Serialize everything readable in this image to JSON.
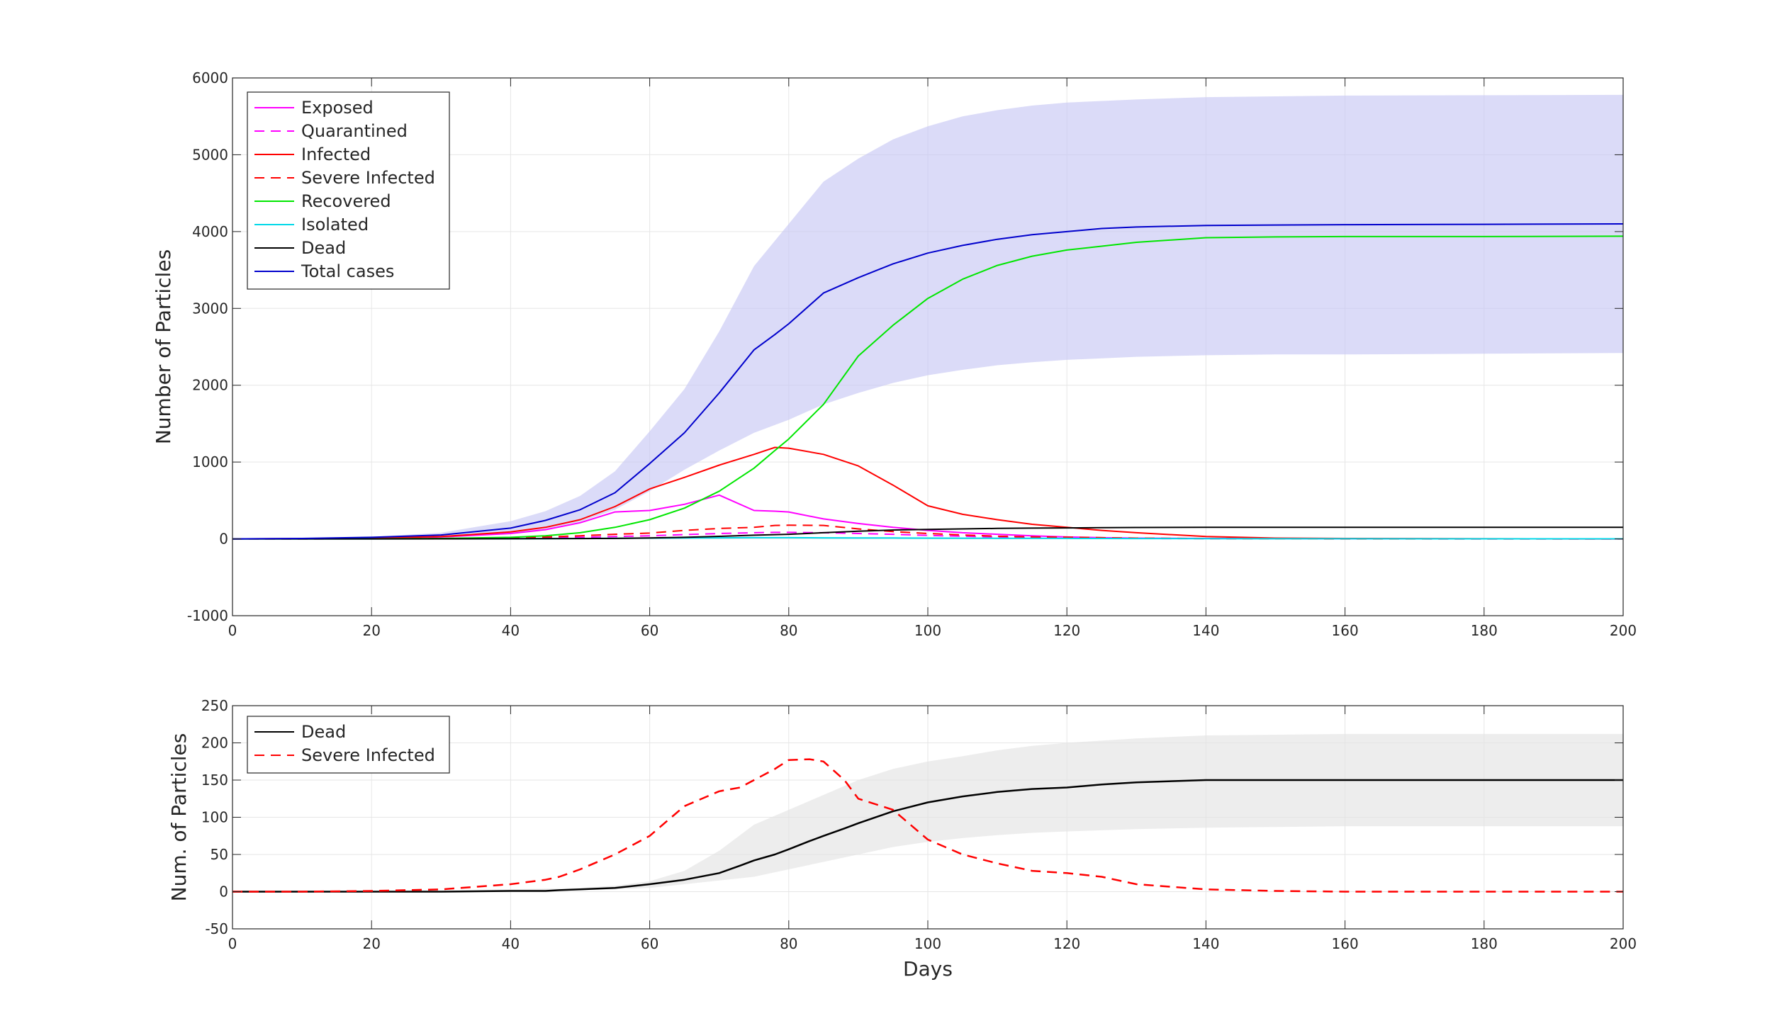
{
  "figure": {
    "xlabel": "Days"
  },
  "chart_data": [
    {
      "type": "line",
      "title": "",
      "xlabel": "",
      "ylabel": "Number of Particles",
      "xlim": [
        0,
        200
      ],
      "ylim": [
        -1000,
        6000
      ],
      "xticks": [
        0,
        20,
        40,
        60,
        80,
        100,
        120,
        140,
        160,
        180,
        200
      ],
      "yticks": [
        -1000,
        0,
        1000,
        2000,
        3000,
        4000,
        5000,
        6000
      ],
      "grid": true,
      "legend_position": "top-left",
      "band": {
        "color": "#c8c8f5",
        "x": [
          0,
          10,
          20,
          30,
          40,
          45,
          50,
          55,
          60,
          65,
          70,
          75,
          80,
          85,
          90,
          95,
          100,
          105,
          110,
          115,
          120,
          130,
          140,
          150,
          160,
          180,
          200
        ],
        "lower": [
          0,
          2,
          8,
          28,
          75,
          130,
          220,
          380,
          620,
          900,
          1150,
          1380,
          1550,
          1750,
          1900,
          2030,
          2130,
          2200,
          2260,
          2300,
          2330,
          2370,
          2390,
          2400,
          2400,
          2410,
          2420
        ],
        "upper": [
          0,
          6,
          25,
          80,
          230,
          360,
          560,
          880,
          1400,
          1950,
          2700,
          3550,
          4100,
          4650,
          4950,
          5200,
          5370,
          5500,
          5580,
          5640,
          5680,
          5720,
          5750,
          5760,
          5770,
          5775,
          5780
        ]
      },
      "x": [
        0,
        10,
        20,
        30,
        40,
        45,
        50,
        55,
        60,
        65,
        70,
        75,
        78,
        80,
        85,
        90,
        95,
        100,
        105,
        110,
        115,
        120,
        125,
        130,
        140,
        150,
        160,
        180,
        200
      ],
      "series": [
        {
          "name": "Exposed",
          "color": "#ff00ff",
          "dash": "solid",
          "values": [
            0,
            2,
            8,
            25,
            70,
            120,
            210,
            350,
            370,
            450,
            570,
            370,
            360,
            350,
            260,
            200,
            150,
            110,
            80,
            60,
            40,
            25,
            15,
            10,
            5,
            3,
            2,
            1,
            0
          ]
        },
        {
          "name": "Quarantined",
          "color": "#ff00ff",
          "dash": "dashed",
          "values": [
            0,
            0,
            1,
            3,
            8,
            12,
            20,
            30,
            40,
            55,
            70,
            80,
            85,
            85,
            80,
            70,
            60,
            45,
            35,
            25,
            18,
            12,
            8,
            5,
            3,
            2,
            1,
            0,
            0
          ]
        },
        {
          "name": "Infected",
          "color": "#ff0000",
          "dash": "solid",
          "values": [
            0,
            3,
            10,
            30,
            90,
            150,
            250,
            420,
            650,
            800,
            960,
            1100,
            1190,
            1180,
            1100,
            950,
            700,
            430,
            320,
            250,
            190,
            150,
            110,
            80,
            30,
            10,
            5,
            2,
            0
          ]
        },
        {
          "name": "Severe Infected",
          "color": "#ff0000",
          "dash": "dashed",
          "values": [
            0,
            0,
            2,
            5,
            15,
            25,
            40,
            60,
            75,
            110,
            135,
            150,
            175,
            178,
            175,
            130,
            95,
            70,
            50,
            35,
            25,
            22,
            15,
            10,
            3,
            1,
            0,
            0,
            0
          ]
        },
        {
          "name": "Recovered",
          "color": "#00e600",
          "dash": "solid",
          "values": [
            0,
            0,
            1,
            5,
            20,
            40,
            80,
            150,
            250,
            400,
            620,
            920,
            1150,
            1300,
            1750,
            2380,
            2780,
            3130,
            3380,
            3560,
            3680,
            3760,
            3810,
            3860,
            3920,
            3930,
            3935,
            3935,
            3940
          ]
        },
        {
          "name": "Isolated",
          "color": "#00d8e8",
          "dash": "solid",
          "values": [
            0,
            0,
            0,
            1,
            2,
            3,
            5,
            7,
            10,
            12,
            14,
            15,
            15,
            15,
            14,
            13,
            12,
            10,
            9,
            8,
            7,
            6,
            5,
            4,
            3,
            2,
            2,
            1,
            1
          ]
        },
        {
          "name": "Dead",
          "color": "#000000",
          "dash": "solid",
          "values": [
            0,
            0,
            0,
            1,
            2,
            3,
            4,
            6,
            12,
            20,
            33,
            48,
            55,
            60,
            80,
            100,
            115,
            122,
            130,
            136,
            140,
            143,
            146,
            148,
            150,
            150,
            150,
            150,
            150
          ]
        },
        {
          "name": "Total cases",
          "color": "#0000cc",
          "dash": "solid",
          "values": [
            0,
            5,
            20,
            50,
            140,
            240,
            380,
            600,
            980,
            1380,
            1900,
            2460,
            2660,
            2800,
            3200,
            3400,
            3580,
            3720,
            3820,
            3900,
            3960,
            4000,
            4040,
            4060,
            4080,
            4085,
            4090,
            4095,
            4100
          ]
        }
      ]
    },
    {
      "type": "line",
      "title": "",
      "xlabel": "Days",
      "ylabel": "Num. of Particles",
      "xlim": [
        0,
        200
      ],
      "ylim": [
        -50,
        250
      ],
      "xticks": [
        0,
        20,
        40,
        60,
        80,
        100,
        120,
        140,
        160,
        180,
        200
      ],
      "yticks": [
        -50,
        0,
        50,
        100,
        150,
        200,
        250
      ],
      "grid": true,
      "legend_position": "top-left",
      "band": {
        "color": "#e3e3e3",
        "x": [
          0,
          10,
          20,
          30,
          40,
          45,
          50,
          55,
          60,
          65,
          70,
          75,
          80,
          85,
          90,
          95,
          100,
          105,
          110,
          115,
          120,
          130,
          140,
          150,
          160,
          180,
          200
        ],
        "lower": [
          0,
          0,
          0,
          0,
          0,
          1,
          2,
          3,
          5,
          10,
          15,
          20,
          30,
          40,
          50,
          60,
          67,
          72,
          76,
          79,
          81,
          84,
          86,
          87,
          88,
          88,
          88
        ],
        "upper": [
          0,
          0,
          0,
          1,
          3,
          4,
          5,
          8,
          14,
          28,
          55,
          90,
          110,
          130,
          150,
          165,
          175,
          182,
          190,
          196,
          200,
          206,
          210,
          211,
          212,
          212,
          212
        ]
      },
      "x": [
        0,
        10,
        20,
        30,
        40,
        45,
        47,
        50,
        55,
        60,
        65,
        70,
        73,
        75,
        78,
        80,
        83,
        85,
        88,
        90,
        95,
        100,
        105,
        110,
        115,
        120,
        125,
        130,
        140,
        150,
        160,
        180,
        200
      ],
      "series": [
        {
          "name": "Dead",
          "color": "#000000",
          "dash": "solid",
          "values": [
            0,
            0,
            0,
            0,
            1,
            1,
            2,
            3,
            5,
            10,
            16,
            25,
            35,
            42,
            50,
            57,
            68,
            75,
            85,
            92,
            108,
            120,
            128,
            134,
            138,
            140,
            144,
            147,
            150,
            150,
            150,
            150,
            150
          ]
        },
        {
          "name": "Severe Infected",
          "color": "#ff0000",
          "dash": "dashed",
          "values": [
            0,
            0,
            1,
            3,
            10,
            16,
            20,
            30,
            50,
            75,
            115,
            135,
            140,
            150,
            165,
            177,
            178,
            175,
            150,
            125,
            110,
            70,
            50,
            38,
            28,
            25,
            20,
            10,
            3,
            1,
            0,
            0,
            0
          ]
        }
      ]
    }
  ]
}
